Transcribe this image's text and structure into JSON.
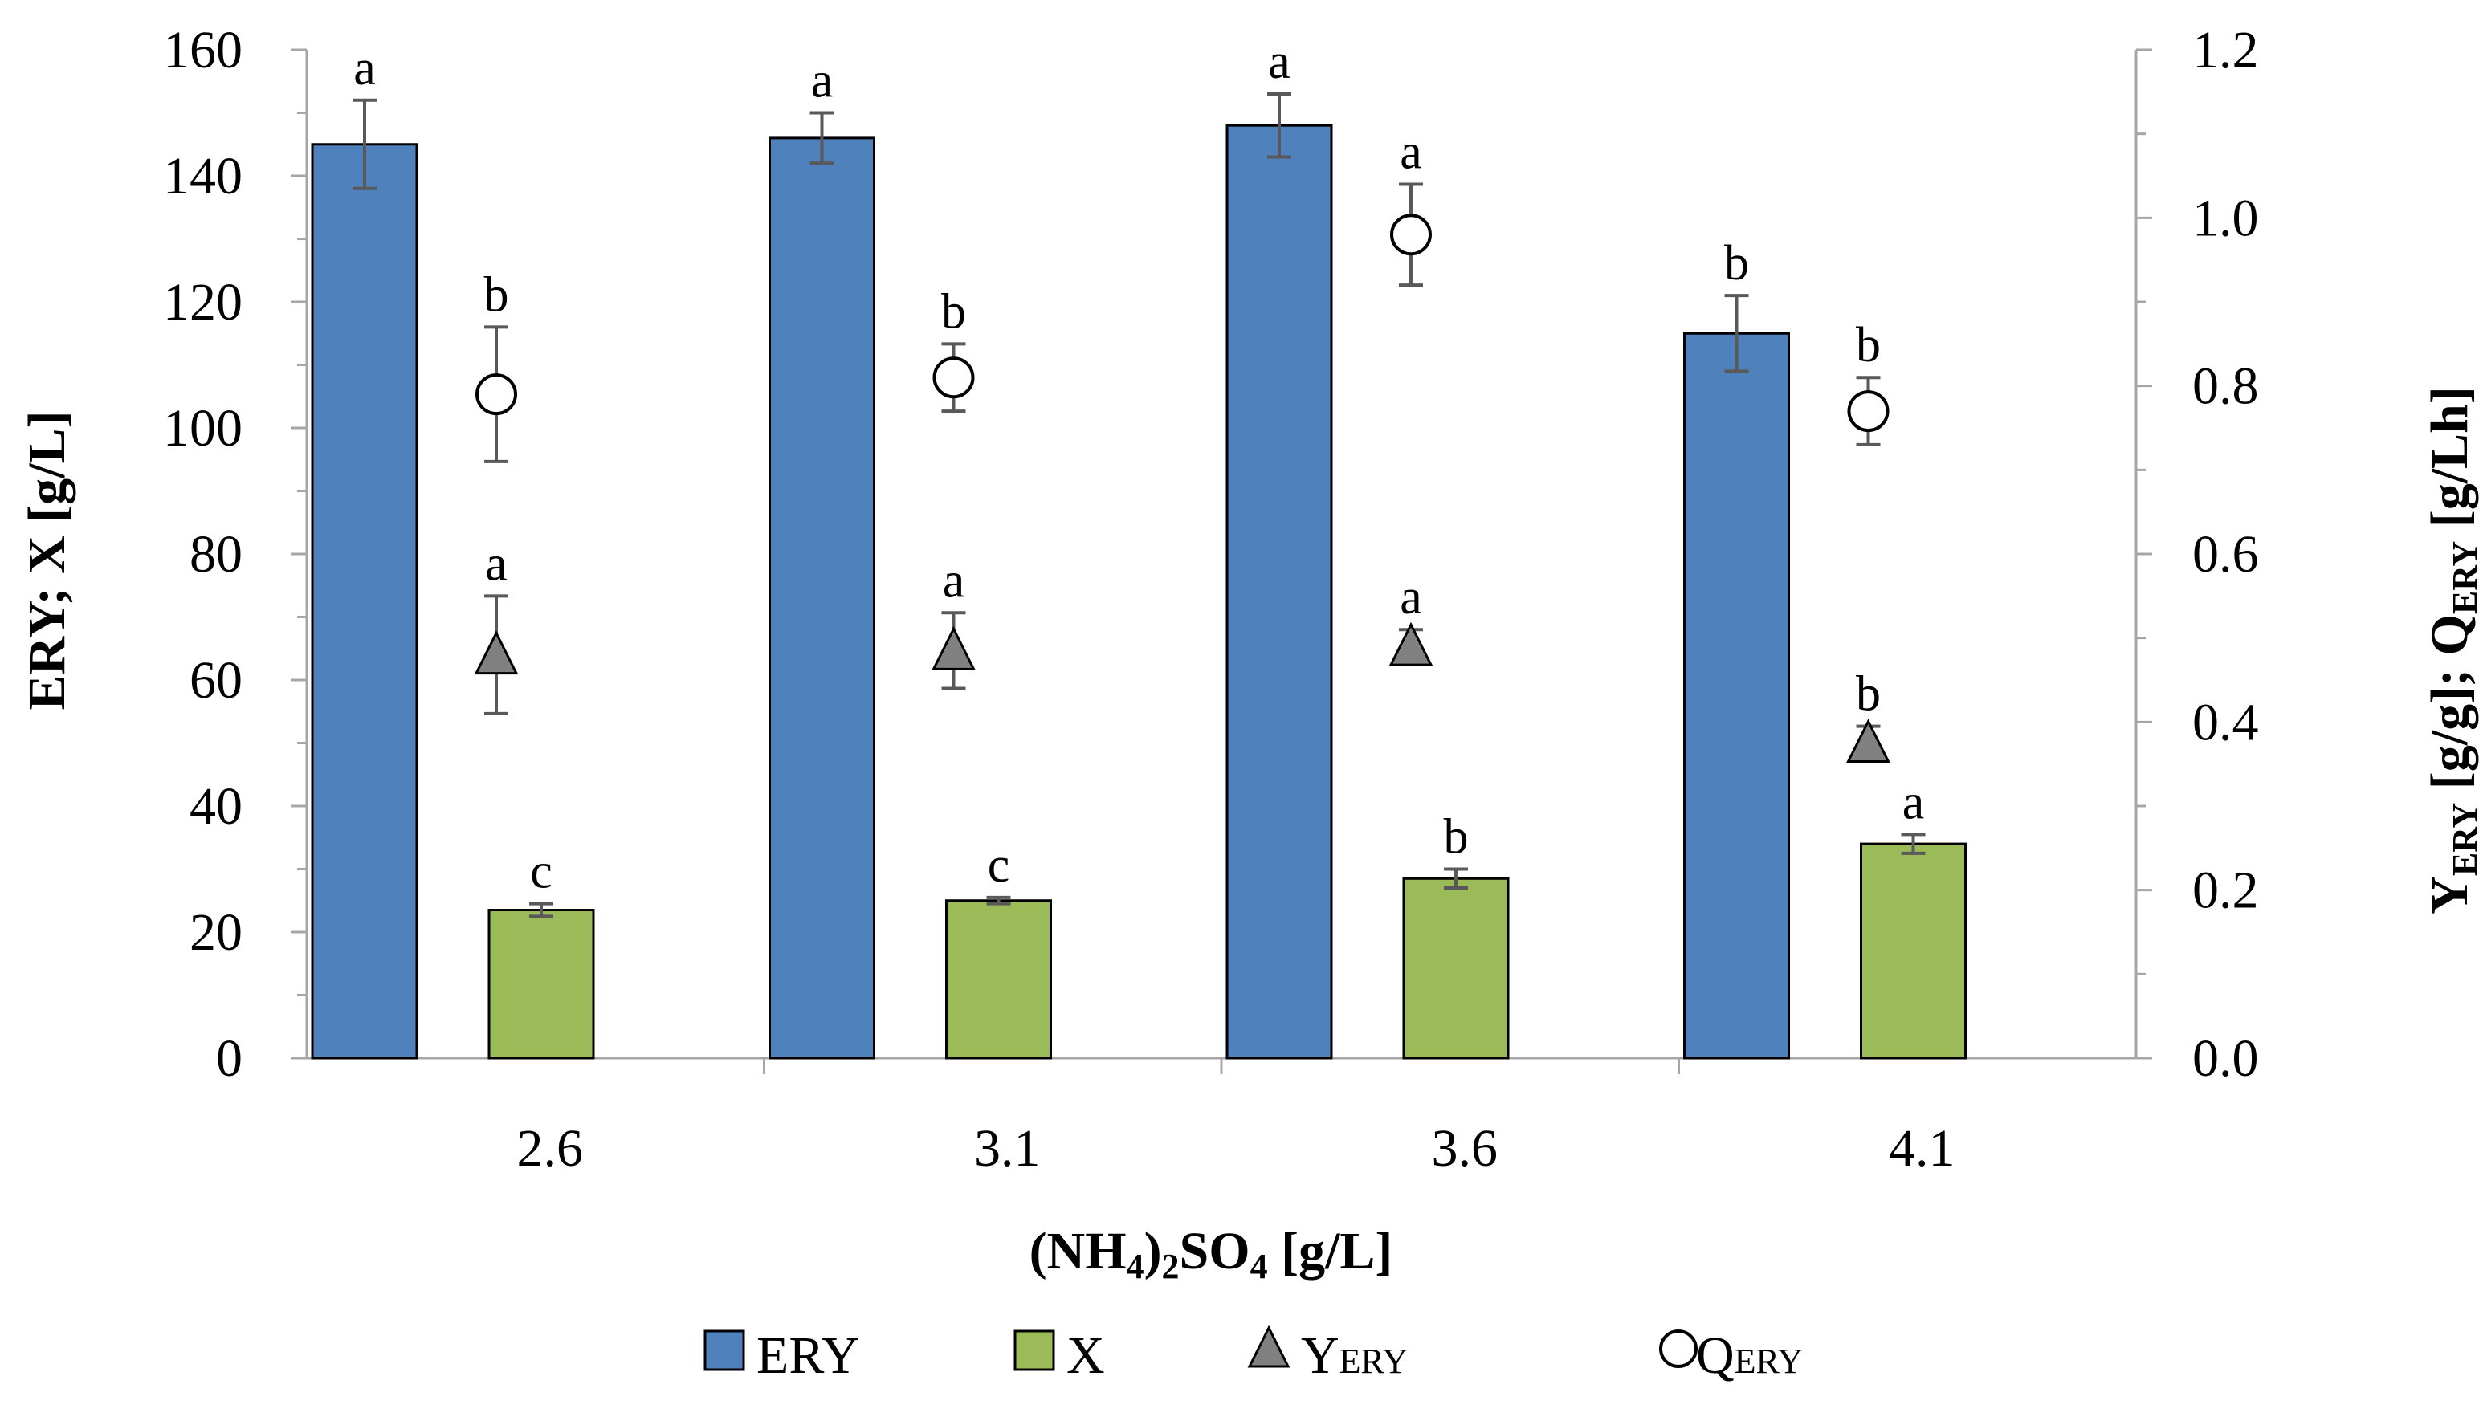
{
  "chart_data": {
    "type": "bar",
    "categories": [
      "2.6",
      "3.1",
      "3.6",
      "4.1"
    ],
    "xlabel": {
      "prefix": "(NH",
      "sub1": "4",
      "mid": ")",
      "sub2": "2",
      "mid2": "SO",
      "sub3": "4",
      "suffix": " [g/L]"
    },
    "ylabel_left": "ERY; X [g/L]",
    "ylabel_right": {
      "y": "Y",
      "y_sub": "ERY",
      "mid": " [g/g]; Q",
      "q_sub": "ERY",
      "suffix": " [g/Lh]"
    },
    "left_axis": {
      "min": 0,
      "max": 160,
      "step": 20,
      "tick_labels": [
        "0",
        "20",
        "40",
        "60",
        "80",
        "100",
        "120",
        "140",
        "160"
      ]
    },
    "right_axis": {
      "min": 0,
      "max": 1.2,
      "step": 0.2,
      "tick_labels": [
        "0.0",
        "0.2",
        "0.4",
        "0.6",
        "0.8",
        "1.0",
        "1.2"
      ]
    },
    "colors": {
      "ERY": "#4f81bd",
      "X": "#9bbb59",
      "Y_ERY": "#808080",
      "Q_ERY": "#ffffff",
      "error": "#595959"
    },
    "series": [
      {
        "name": "ERY",
        "kind": "bar",
        "axis": "left",
        "values": [
          145,
          146,
          148,
          115
        ],
        "errors": [
          7,
          4,
          5,
          6
        ],
        "labels": [
          "a",
          "a",
          "a",
          "b"
        ]
      },
      {
        "name": "X",
        "kind": "bar",
        "axis": "left",
        "values": [
          23.5,
          25,
          28.5,
          34
        ],
        "errors": [
          1,
          0.5,
          1.5,
          1.5
        ],
        "labels": [
          "c",
          "c",
          "b",
          "a"
        ]
      },
      {
        "name": "Y_ERY",
        "kind": "marker-triangle",
        "axis": "right",
        "values": [
          0.48,
          0.485,
          0.49,
          0.375
        ],
        "errors": [
          0.07,
          0.045,
          0.02,
          0.02
        ],
        "labels": [
          "a",
          "a",
          "a",
          "b"
        ]
      },
      {
        "name": "Q_ERY",
        "kind": "marker-circle",
        "axis": "right",
        "values": [
          0.79,
          0.81,
          0.98,
          0.77
        ],
        "errors": [
          0.08,
          0.04,
          0.06,
          0.04
        ],
        "labels": [
          "b",
          "b",
          "a",
          "b"
        ]
      }
    ],
    "legend": [
      {
        "key": "ERY",
        "label": "ERY",
        "sub": ""
      },
      {
        "key": "X",
        "label": "X",
        "sub": ""
      },
      {
        "key": "Y_ERY",
        "label": "Y",
        "sub": "ERY"
      },
      {
        "key": "Q_ERY",
        "label": "Q",
        "sub": "ERY"
      }
    ]
  }
}
